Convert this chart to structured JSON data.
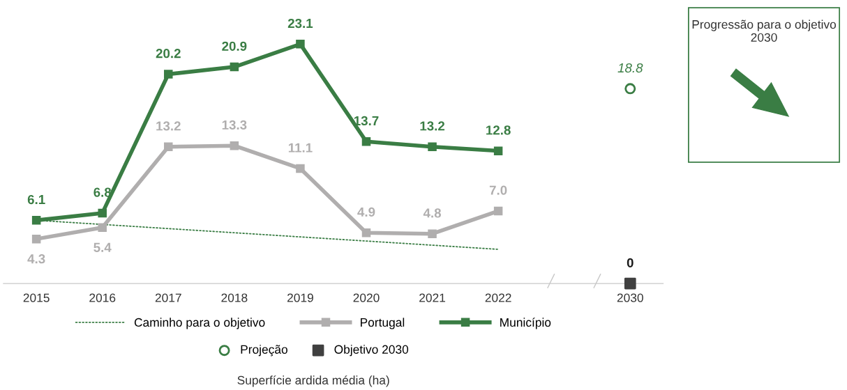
{
  "chart_data": {
    "type": "line",
    "categories": [
      "2015",
      "2016",
      "2017",
      "2018",
      "2019",
      "2020",
      "2021",
      "2022",
      null,
      "2030"
    ],
    "series": [
      {
        "name": "Caminho para o objetivo",
        "color": "#3a7d44",
        "line_style": "dotted",
        "values": [
          6.1,
          null,
          null,
          null,
          null,
          null,
          null,
          3.3,
          null,
          null
        ]
      },
      {
        "name": "Portugal",
        "color": "#b0aeae",
        "line_style": "solid",
        "marker": "square",
        "values": [
          4.3,
          5.4,
          13.2,
          13.3,
          11.1,
          4.9,
          4.8,
          7.0,
          null,
          null
        ],
        "value_labels": [
          "4.3",
          "5.4",
          "13.2",
          "13.3",
          "11.1",
          "4.9",
          "4.8",
          "7.0",
          null,
          null
        ]
      },
      {
        "name": "Município",
        "color": "#3a7d44",
        "line_style": "solid",
        "marker": "square",
        "values": [
          6.1,
          6.8,
          20.2,
          20.9,
          23.1,
          13.7,
          13.2,
          12.8,
          null,
          null
        ],
        "value_labels": [
          "6.1",
          "6.8",
          "20.2",
          "20.9",
          "23.1",
          "13.7",
          "13.2",
          "12.8",
          null,
          null
        ]
      },
      {
        "name": "Projeção",
        "type": "scatter",
        "color": "#3a7d44",
        "marker": "circle",
        "values": [
          null,
          null,
          null,
          null,
          null,
          null,
          null,
          null,
          null,
          18.8
        ],
        "value_labels": [
          null,
          null,
          null,
          null,
          null,
          null,
          null,
          null,
          null,
          "18.8"
        ]
      },
      {
        "name": "Objetivo 2030",
        "type": "scatter",
        "color": "#404040",
        "marker": "square",
        "values": [
          null,
          null,
          null,
          null,
          null,
          null,
          null,
          null,
          null,
          0
        ],
        "value_labels": [
          null,
          null,
          null,
          null,
          null,
          null,
          null,
          null,
          null,
          "0"
        ]
      }
    ],
    "legend": "bottom",
    "annotations": [
      "Progressão para o objetivo 2030",
      "Superfície ardida média (ha)"
    ]
  }
}
